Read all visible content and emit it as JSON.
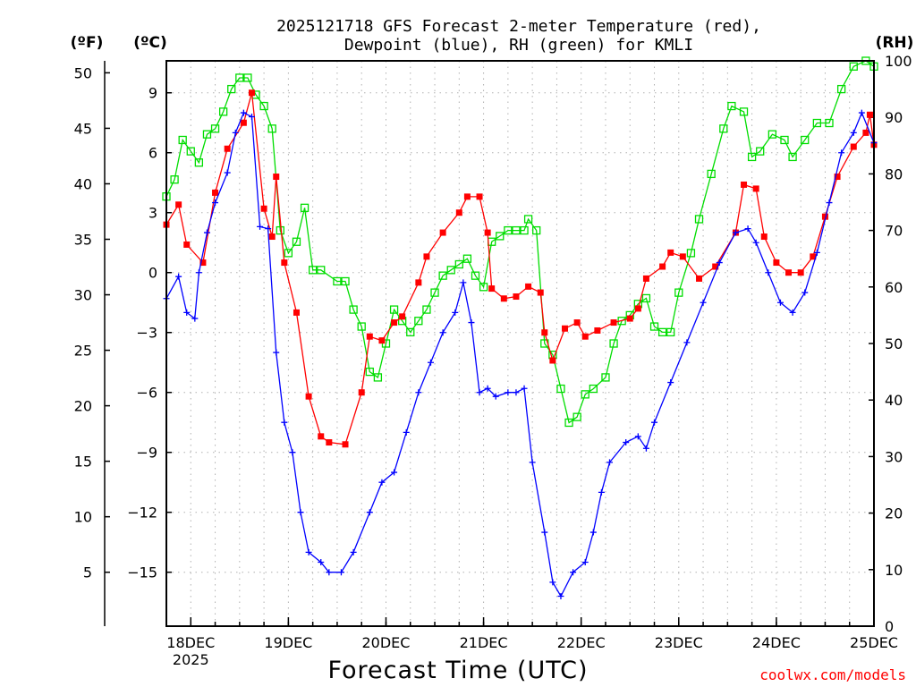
{
  "chart_data": {
    "type": "line",
    "title_line1": "2025121718 GFS Forecast 2-meter Temperature (red),",
    "title_line2": "Dewpoint (blue), RH (green) for KMLI",
    "xlabel": "Forecast Time (UTC)",
    "credit": "coolwx.com/models",
    "units": {
      "fahrenheit": "(ºF)",
      "celsius": "(ºC)",
      "rh": "(RH)"
    },
    "x_unit": "hours since 2025-12-17 18Z",
    "xlim": [
      0,
      174
    ],
    "x_ticks": [
      {
        "hour": 6,
        "label": "18DEC",
        "sublabel": "2025"
      },
      {
        "hour": 30,
        "label": "19DEC"
      },
      {
        "hour": 54,
        "label": "20DEC"
      },
      {
        "hour": 78,
        "label": "21DEC"
      },
      {
        "hour": 102,
        "label": "22DEC"
      },
      {
        "hour": 126,
        "label": "23DEC"
      },
      {
        "hour": 150,
        "label": "24DEC"
      },
      {
        "hour": 174,
        "label": "25DEC"
      }
    ],
    "ylim_celsius": [
      -17.7,
      10.6
    ],
    "celsius_ticks": [
      9,
      6,
      3,
      0,
      -3,
      -6,
      -9,
      -12,
      -15
    ],
    "celsius_tick_labels": [
      "9",
      "6",
      "3",
      "0",
      "−3",
      "−6",
      "−9",
      "−12",
      "−15"
    ],
    "fahrenheit_ticks": [
      50,
      45,
      40,
      35,
      30,
      25,
      20,
      15,
      10,
      5
    ],
    "ylim_rh": [
      0,
      100
    ],
    "rh_ticks": [
      100,
      90,
      80,
      70,
      60,
      50,
      40,
      30,
      20,
      10,
      0
    ],
    "series": [
      {
        "name": "2-meter Temperature",
        "unit": "C",
        "color": "#ff0000",
        "marker": "filled-square",
        "points": [
          [
            0,
            2.4
          ],
          [
            3,
            3.4
          ],
          [
            5,
            1.4
          ],
          [
            9,
            0.5
          ],
          [
            12,
            4.0
          ],
          [
            15,
            6.2
          ],
          [
            19,
            7.5
          ],
          [
            21,
            9.0
          ],
          [
            24,
            3.2
          ],
          [
            26,
            1.8
          ],
          [
            27,
            4.8
          ],
          [
            29,
            0.5
          ],
          [
            32,
            -2.0
          ],
          [
            35,
            -6.2
          ],
          [
            38,
            -8.2
          ],
          [
            40,
            -8.5
          ],
          [
            44,
            -8.6
          ],
          [
            48,
            -6.0
          ],
          [
            50,
            -3.2
          ],
          [
            53,
            -3.4
          ],
          [
            56,
            -2.5
          ],
          [
            58,
            -2.2
          ],
          [
            62,
            -0.5
          ],
          [
            64,
            0.8
          ],
          [
            68,
            2.0
          ],
          [
            72,
            3.0
          ],
          [
            74,
            3.8
          ],
          [
            77,
            3.8
          ],
          [
            79,
            2.0
          ],
          [
            80,
            -0.8
          ],
          [
            83,
            -1.3
          ],
          [
            86,
            -1.2
          ],
          [
            89,
            -0.7
          ],
          [
            92,
            -1.0
          ],
          [
            93,
            -3.0
          ],
          [
            95,
            -4.4
          ],
          [
            98,
            -2.8
          ],
          [
            101,
            -2.5
          ],
          [
            103,
            -3.2
          ],
          [
            106,
            -2.9
          ],
          [
            110,
            -2.5
          ],
          [
            114,
            -2.3
          ],
          [
            116,
            -1.8
          ],
          [
            118,
            -0.3
          ],
          [
            122,
            0.3
          ],
          [
            124,
            1.0
          ],
          [
            127,
            0.8
          ],
          [
            131,
            -0.3
          ],
          [
            135,
            0.3
          ],
          [
            140,
            2.0
          ],
          [
            142,
            4.4
          ],
          [
            145,
            4.2
          ],
          [
            147,
            1.8
          ],
          [
            150,
            0.5
          ],
          [
            153,
            0.0
          ],
          [
            156,
            0.0
          ],
          [
            159,
            0.8
          ],
          [
            162,
            2.8
          ],
          [
            165,
            4.8
          ],
          [
            169,
            6.3
          ],
          [
            172,
            7.0
          ],
          [
            173,
            7.9
          ],
          [
            174,
            6.4
          ]
        ]
      },
      {
        "name": "2-meter Dewpoint",
        "unit": "C",
        "color": "#0000ff",
        "marker": "plus",
        "points": [
          [
            0,
            -1.3
          ],
          [
            3,
            -0.2
          ],
          [
            5,
            -2.0
          ],
          [
            7,
            -2.3
          ],
          [
            8,
            0.0
          ],
          [
            10,
            2.0
          ],
          [
            12,
            3.5
          ],
          [
            15,
            5.0
          ],
          [
            17,
            7.0
          ],
          [
            19,
            8.0
          ],
          [
            21,
            7.8
          ],
          [
            23,
            2.3
          ],
          [
            25,
            2.2
          ],
          [
            27,
            -4.0
          ],
          [
            29,
            -7.5
          ],
          [
            31,
            -9.0
          ],
          [
            33,
            -12.0
          ],
          [
            35,
            -14.0
          ],
          [
            38,
            -14.5
          ],
          [
            40,
            -15.0
          ],
          [
            43,
            -15.0
          ],
          [
            46,
            -14.0
          ],
          [
            50,
            -12.0
          ],
          [
            53,
            -10.5
          ],
          [
            56,
            -10.0
          ],
          [
            59,
            -8.0
          ],
          [
            62,
            -6.0
          ],
          [
            65,
            -4.5
          ],
          [
            68,
            -3.0
          ],
          [
            71,
            -2.0
          ],
          [
            73,
            -0.5
          ],
          [
            75,
            -2.5
          ],
          [
            77,
            -6.0
          ],
          [
            79,
            -5.8
          ],
          [
            81,
            -6.2
          ],
          [
            84,
            -6.0
          ],
          [
            86,
            -6.0
          ],
          [
            88,
            -5.8
          ],
          [
            90,
            -9.5
          ],
          [
            93,
            -13.0
          ],
          [
            95,
            -15.5
          ],
          [
            97,
            -16.2
          ],
          [
            100,
            -15.0
          ],
          [
            103,
            -14.5
          ],
          [
            105,
            -13.0
          ],
          [
            107,
            -11.0
          ],
          [
            109,
            -9.5
          ],
          [
            113,
            -8.5
          ],
          [
            116,
            -8.2
          ],
          [
            118,
            -8.8
          ],
          [
            120,
            -7.5
          ],
          [
            124,
            -5.5
          ],
          [
            128,
            -3.5
          ],
          [
            132,
            -1.5
          ],
          [
            136,
            0.5
          ],
          [
            140,
            2.0
          ],
          [
            143,
            2.2
          ],
          [
            145,
            1.5
          ],
          [
            148,
            0.0
          ],
          [
            151,
            -1.5
          ],
          [
            154,
            -2.0
          ],
          [
            157,
            -1.0
          ],
          [
            160,
            1.0
          ],
          [
            163,
            3.5
          ],
          [
            166,
            6.0
          ],
          [
            169,
            7.0
          ],
          [
            171,
            8.0
          ],
          [
            174,
            6.5
          ]
        ]
      },
      {
        "name": "Relative Humidity",
        "unit": "%",
        "color": "#00dd00",
        "marker": "open-square",
        "points": [
          [
            0,
            76
          ],
          [
            2,
            79
          ],
          [
            4,
            86
          ],
          [
            6,
            84
          ],
          [
            8,
            82
          ],
          [
            10,
            87
          ],
          [
            12,
            88
          ],
          [
            14,
            91
          ],
          [
            16,
            95
          ],
          [
            18,
            97
          ],
          [
            20,
            97
          ],
          [
            22,
            94
          ],
          [
            24,
            92
          ],
          [
            26,
            88
          ],
          [
            28,
            70
          ],
          [
            30,
            66
          ],
          [
            32,
            68
          ],
          [
            34,
            74
          ],
          [
            36,
            63
          ],
          [
            38,
            63
          ],
          [
            42,
            61
          ],
          [
            44,
            61
          ],
          [
            46,
            56
          ],
          [
            48,
            53
          ],
          [
            50,
            45
          ],
          [
            52,
            44
          ],
          [
            54,
            50
          ],
          [
            56,
            56
          ],
          [
            58,
            54
          ],
          [
            60,
            52
          ],
          [
            62,
            54
          ],
          [
            64,
            56
          ],
          [
            66,
            59
          ],
          [
            68,
            62
          ],
          [
            70,
            63
          ],
          [
            72,
            64
          ],
          [
            74,
            65
          ],
          [
            76,
            62
          ],
          [
            78,
            60
          ],
          [
            80,
            68
          ],
          [
            82,
            69
          ],
          [
            84,
            70
          ],
          [
            86,
            70
          ],
          [
            88,
            70
          ],
          [
            89,
            72
          ],
          [
            91,
            70
          ],
          [
            93,
            50
          ],
          [
            95,
            48
          ],
          [
            97,
            42
          ],
          [
            99,
            36
          ],
          [
            101,
            37
          ],
          [
            103,
            41
          ],
          [
            105,
            42
          ],
          [
            108,
            44
          ],
          [
            110,
            50
          ],
          [
            112,
            54
          ],
          [
            114,
            55
          ],
          [
            116,
            57
          ],
          [
            118,
            58
          ],
          [
            120,
            53
          ],
          [
            122,
            52
          ],
          [
            124,
            52
          ],
          [
            126,
            59
          ],
          [
            129,
            66
          ],
          [
            131,
            72
          ],
          [
            134,
            80
          ],
          [
            137,
            88
          ],
          [
            139,
            92
          ],
          [
            142,
            91
          ],
          [
            144,
            83
          ],
          [
            146,
            84
          ],
          [
            149,
            87
          ],
          [
            152,
            86
          ],
          [
            154,
            83
          ],
          [
            157,
            86
          ],
          [
            160,
            89
          ],
          [
            163,
            89
          ],
          [
            166,
            95
          ],
          [
            169,
            99
          ],
          [
            172,
            100
          ],
          [
            174,
            99
          ]
        ]
      }
    ]
  }
}
